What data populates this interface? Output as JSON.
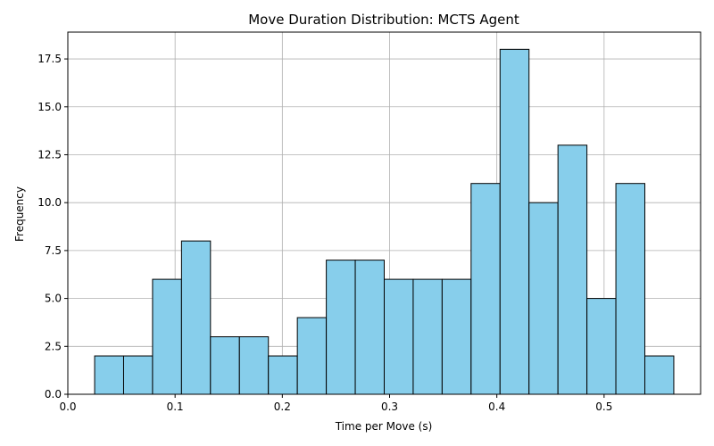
{
  "chart_data": {
    "type": "histogram",
    "title": "Move Duration Distribution: MCTS Agent",
    "xlabel": "Time per Move (s)",
    "ylabel": "Frequency",
    "xlim": [
      0.0,
      0.59
    ],
    "ylim": [
      0,
      18.9
    ],
    "x_ticks": [
      0.0,
      0.1,
      0.2,
      0.3,
      0.4,
      0.5
    ],
    "x_tick_labels": [
      "0.0",
      "0.1",
      "0.2",
      "0.3",
      "0.4",
      "0.5"
    ],
    "y_ticks": [
      0.0,
      2.5,
      5.0,
      7.5,
      10.0,
      12.5,
      15.0,
      17.5
    ],
    "y_tick_labels": [
      "0.0",
      "2.5",
      "5.0",
      "7.5",
      "10.0",
      "12.5",
      "15.0",
      "17.5"
    ],
    "bin_edges": [
      0.025,
      0.052,
      0.079,
      0.106,
      0.133,
      0.16,
      0.187,
      0.214,
      0.241,
      0.268,
      0.295,
      0.322,
      0.349,
      0.376,
      0.403,
      0.43,
      0.457,
      0.484,
      0.511,
      0.538,
      0.565
    ],
    "values": [
      2,
      2,
      6,
      8,
      3,
      3,
      2,
      4,
      7,
      7,
      6,
      6,
      6,
      11,
      18,
      10,
      13,
      5,
      11,
      2
    ],
    "bar_color": "#87ceeb",
    "edge_color": "#000000",
    "grid": true
  }
}
